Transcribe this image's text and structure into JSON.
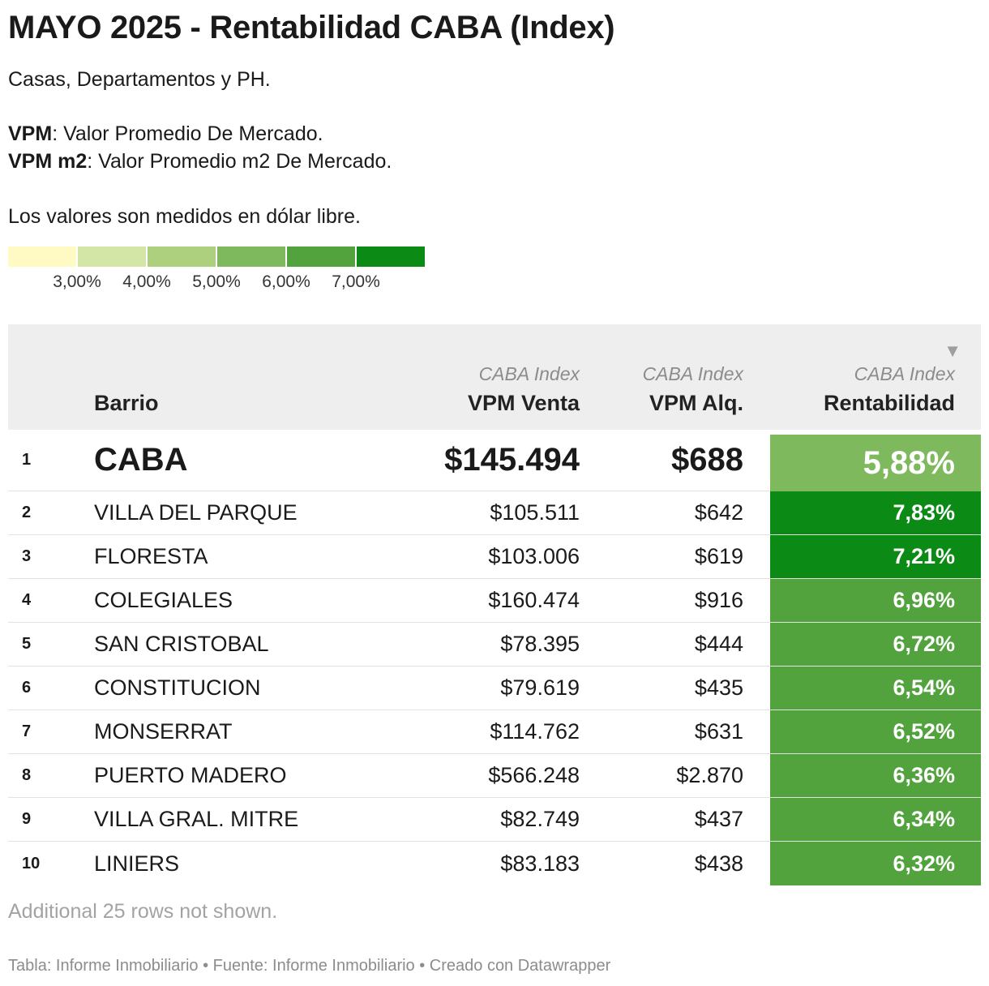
{
  "chart_data": {
    "type": "table",
    "title": "MAYO 2025 - Rentabilidad CABA (Index)",
    "description": {
      "line1": "Casas, Departamentos y PH.",
      "vpm_term": "VPM",
      "vpm_def": ": Valor Promedio De Mercado.",
      "vpm2_term": "VPM m2",
      "vpm2_def": ": Valor Promedio m2 De Mercado.",
      "line4": "Los valores son medidos en dólar libre."
    },
    "legend": {
      "colors": [
        "#fff9c4",
        "#d4e6a5",
        "#add07f",
        "#7eb95e",
        "#52a23e",
        "#0b8b15"
      ],
      "ticks": [
        "3,00%",
        "4,00%",
        "5,00%",
        "6,00%",
        "7,00%"
      ]
    },
    "columns": {
      "barrio": "Barrio",
      "venta_sub": "CABA Index",
      "venta": "VPM Venta",
      "alq_sub": "CABA Index",
      "alq": "VPM Alq.",
      "rent_sub": "CABA Index",
      "rent": "Rentabilidad"
    },
    "rows": [
      {
        "rank": "1",
        "barrio": "CABA",
        "venta": "$145.494",
        "alq": "$688",
        "rent": "5,88%",
        "rent_value": 5.88,
        "color": "#7eb95e"
      },
      {
        "rank": "2",
        "barrio": "VILLA DEL PARQUE",
        "venta": "$105.511",
        "alq": "$642",
        "rent": "7,83%",
        "rent_value": 7.83,
        "color": "#0b8b15"
      },
      {
        "rank": "3",
        "barrio": "FLORESTA",
        "venta": "$103.006",
        "alq": "$619",
        "rent": "7,21%",
        "rent_value": 7.21,
        "color": "#0b8b15"
      },
      {
        "rank": "4",
        "barrio": "COLEGIALES",
        "venta": "$160.474",
        "alq": "$916",
        "rent": "6,96%",
        "rent_value": 6.96,
        "color": "#52a23e"
      },
      {
        "rank": "5",
        "barrio": "SAN CRISTOBAL",
        "venta": "$78.395",
        "alq": "$444",
        "rent": "6,72%",
        "rent_value": 6.72,
        "color": "#52a23e"
      },
      {
        "rank": "6",
        "barrio": "CONSTITUCION",
        "venta": "$79.619",
        "alq": "$435",
        "rent": "6,54%",
        "rent_value": 6.54,
        "color": "#52a23e"
      },
      {
        "rank": "7",
        "barrio": "MONSERRAT",
        "venta": "$114.762",
        "alq": "$631",
        "rent": "6,52%",
        "rent_value": 6.52,
        "color": "#52a23e"
      },
      {
        "rank": "8",
        "barrio": "PUERTO MADERO",
        "venta": "$566.248",
        "alq": "$2.870",
        "rent": "6,36%",
        "rent_value": 6.36,
        "color": "#52a23e"
      },
      {
        "rank": "9",
        "barrio": "VILLA GRAL. MITRE",
        "venta": "$82.749",
        "alq": "$437",
        "rent": "6,34%",
        "rent_value": 6.34,
        "color": "#52a23e"
      },
      {
        "rank": "10",
        "barrio": "LINIERS",
        "venta": "$83.183",
        "alq": "$438",
        "rent": "6,32%",
        "rent_value": 6.32,
        "color": "#52a23e"
      }
    ],
    "sort": {
      "column": "Rentabilidad",
      "direction": "descending",
      "icon": "sort-descending-icon"
    },
    "note": "Additional 25 rows not shown.",
    "footer": "Tabla: Informe Inmobiliario • Fuente: Informe Inmobiliario • Creado con Datawrapper"
  }
}
